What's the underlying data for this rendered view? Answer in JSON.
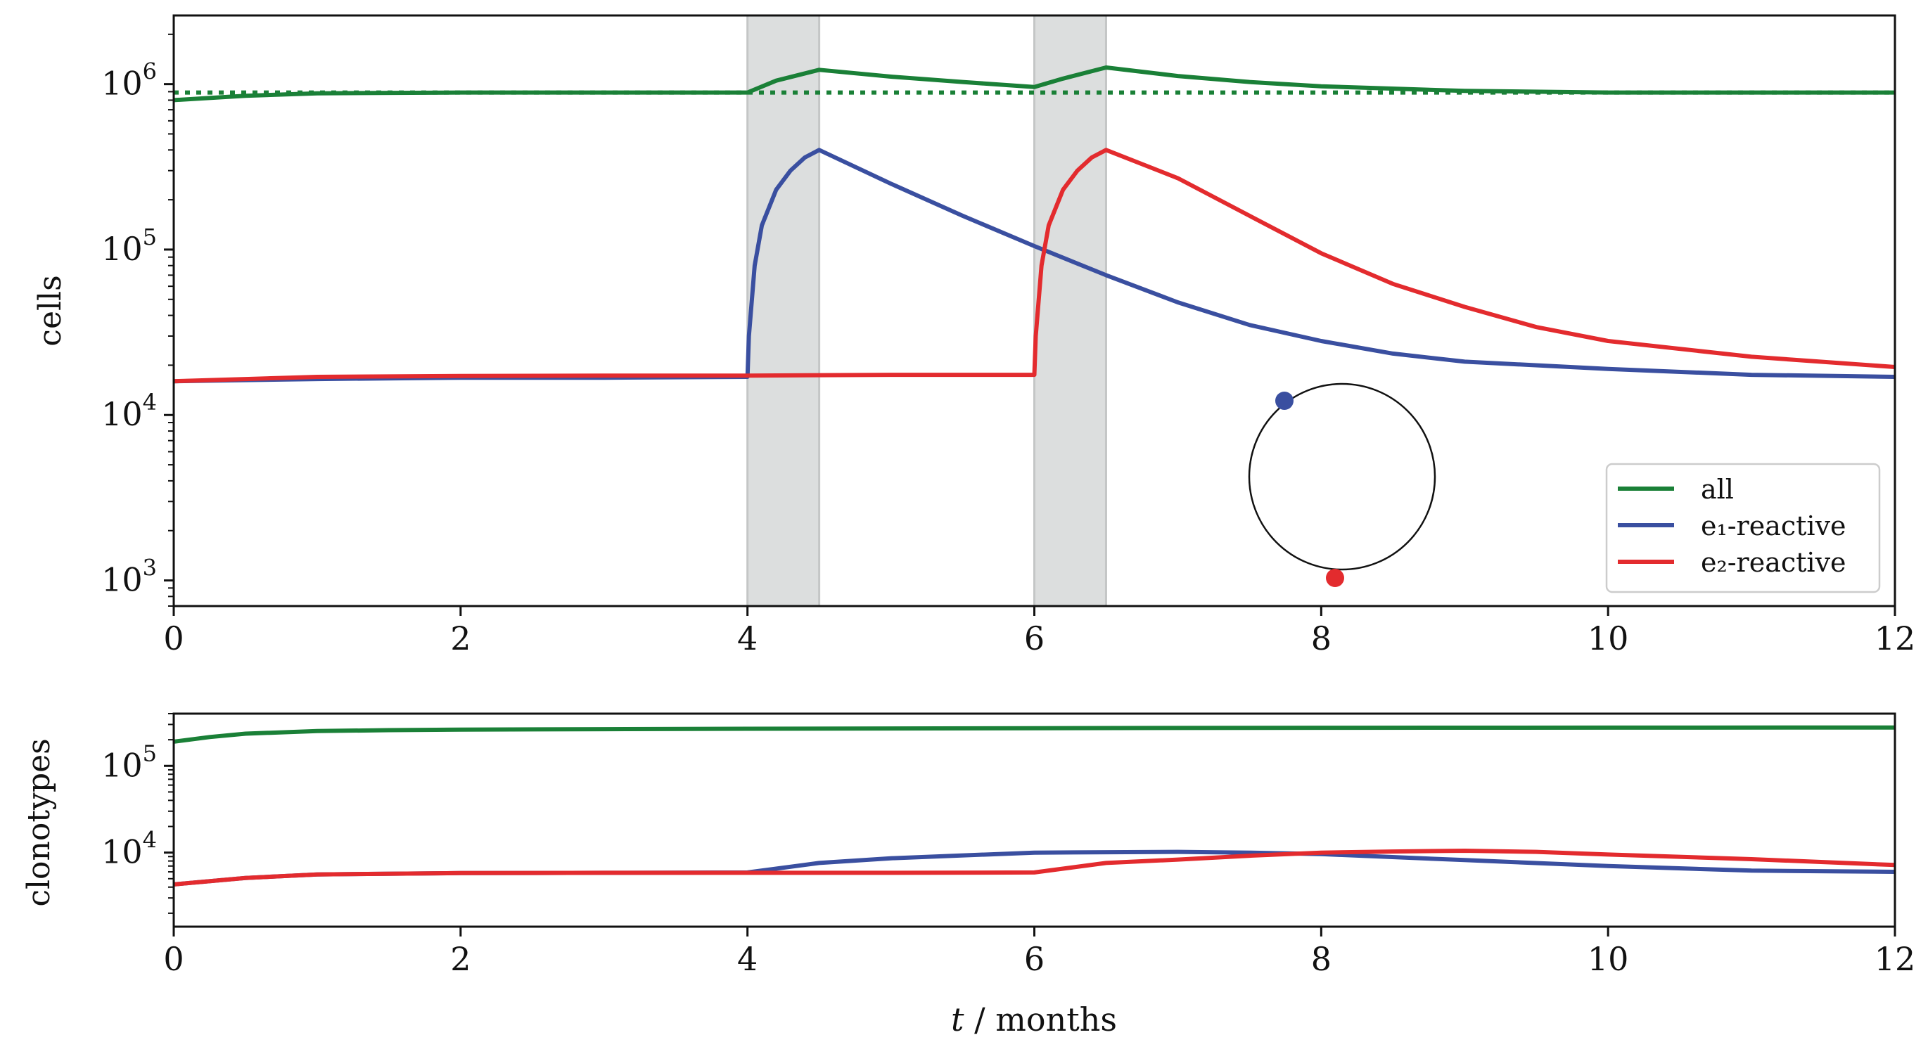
{
  "figure": {
    "xlabel_italic": "t",
    "xlabel_rest": " / months"
  },
  "chart_data": [
    {
      "type": "line",
      "panel": "cells",
      "title": "",
      "xlabel": "",
      "ylabel": "cells",
      "yscale": "log",
      "xlim": [
        0,
        12
      ],
      "ylim": [
        700,
        2600000
      ],
      "xticks": [
        0,
        2,
        4,
        6,
        8,
        10,
        12
      ],
      "xtick_labels": [
        "0",
        "2",
        "4",
        "6",
        "8",
        "10",
        "12"
      ],
      "yticks": [
        1000,
        10000,
        100000,
        1000000
      ],
      "ytick_labels": [
        {
          "base": "10",
          "exp": "3"
        },
        {
          "base": "10",
          "exp": "4"
        },
        {
          "base": "10",
          "exp": "5"
        },
        {
          "base": "10",
          "exp": "6"
        }
      ],
      "shaded_intervals": [
        [
          4,
          4.5
        ],
        [
          6,
          6.5
        ]
      ],
      "series": [
        {
          "name": "all",
          "color": "#1a8037",
          "style": "solid",
          "x": [
            0,
            0.5,
            1,
            2,
            3,
            4,
            4.2,
            4.5,
            5,
            5.5,
            6,
            6.2,
            6.5,
            7,
            7.5,
            8,
            9,
            10,
            11,
            12
          ],
          "y": [
            800000,
            850000,
            880000,
            890000,
            890000,
            890000,
            1050000,
            1220000,
            1110000,
            1030000,
            960000,
            1080000,
            1260000,
            1120000,
            1030000,
            970000,
            910000,
            890000,
            890000,
            890000
          ]
        },
        {
          "name": "all (baseline)",
          "color": "#1a8037",
          "style": "dotted",
          "x": [
            0,
            12
          ],
          "y": [
            890000,
            890000
          ]
        },
        {
          "name": "e₁-reactive",
          "color": "#3a4fa0",
          "style": "solid",
          "x": [
            0,
            1,
            2,
            3,
            4,
            4.01,
            4.05,
            4.1,
            4.2,
            4.3,
            4.4,
            4.5,
            5,
            5.5,
            6,
            6.5,
            7,
            7.5,
            8,
            8.5,
            9,
            10,
            11,
            12
          ],
          "y": [
            16000,
            16500,
            16800,
            16800,
            17000,
            30000,
            80000,
            140000,
            230000,
            300000,
            360000,
            400000,
            250000,
            160000,
            105000,
            70000,
            48000,
            35000,
            28000,
            23500,
            21000,
            19000,
            17500,
            17000
          ]
        },
        {
          "name": "e₂-reactive",
          "color": "#e32b2e",
          "style": "solid",
          "x": [
            0,
            1,
            2,
            3,
            4,
            5,
            6,
            6.01,
            6.05,
            6.1,
            6.2,
            6.3,
            6.4,
            6.5,
            7,
            7.5,
            8,
            8.5,
            9,
            9.5,
            10,
            11,
            12
          ],
          "y": [
            16000,
            17000,
            17200,
            17300,
            17300,
            17500,
            17500,
            30000,
            80000,
            140000,
            230000,
            300000,
            360000,
            400000,
            270000,
            160000,
            95000,
            62000,
            45000,
            34000,
            28000,
            22500,
            19500
          ]
        }
      ],
      "legend": {
        "location": "lower-right",
        "entries": [
          "all",
          "e₁-reactive",
          "e₂-reactive"
        ]
      }
    },
    {
      "type": "line",
      "panel": "clonotypes",
      "title": "",
      "xlabel": "t / months",
      "ylabel": "clonotypes",
      "yscale": "log",
      "xlim": [
        0,
        12
      ],
      "ylim": [
        1400,
        400000
      ],
      "xticks": [
        0,
        2,
        4,
        6,
        8,
        10,
        12
      ],
      "xtick_labels": [
        "0",
        "2",
        "4",
        "6",
        "8",
        "10",
        "12"
      ],
      "yticks": [
        10000,
        100000
      ],
      "ytick_labels": [
        {
          "base": "10",
          "exp": "4"
        },
        {
          "base": "10",
          "exp": "5"
        }
      ],
      "series": [
        {
          "name": "all",
          "color": "#1a8037",
          "style": "solid",
          "x": [
            0,
            0.25,
            0.5,
            1,
            1.5,
            2,
            3,
            4,
            6,
            8,
            10,
            12
          ],
          "y": [
            190000,
            215000,
            235000,
            252000,
            258000,
            262000,
            265000,
            268000,
            272000,
            275000,
            276000,
            277000
          ]
        },
        {
          "name": "e₁-reactive",
          "color": "#3a4fa0",
          "style": "solid",
          "x": [
            0,
            0.5,
            1,
            2,
            3,
            4,
            4.5,
            5,
            6,
            7,
            7.5,
            8,
            9,
            10,
            11,
            12
          ],
          "y": [
            4300,
            5100,
            5600,
            5800,
            5850,
            5900,
            7600,
            8600,
            10000,
            10200,
            10000,
            9600,
            8200,
            7000,
            6200,
            6000
          ]
        },
        {
          "name": "e₂-reactive",
          "color": "#e32b2e",
          "style": "solid",
          "x": [
            0,
            0.5,
            1,
            2,
            3,
            4,
            5,
            6,
            6.5,
            7,
            7.5,
            8,
            8.5,
            9,
            9.5,
            10,
            11,
            12
          ],
          "y": [
            4300,
            5100,
            5600,
            5800,
            5850,
            5850,
            5850,
            5900,
            7600,
            8300,
            9200,
            10000,
            10300,
            10500,
            10200,
            9500,
            8400,
            7200
          ]
        }
      ]
    }
  ]
}
